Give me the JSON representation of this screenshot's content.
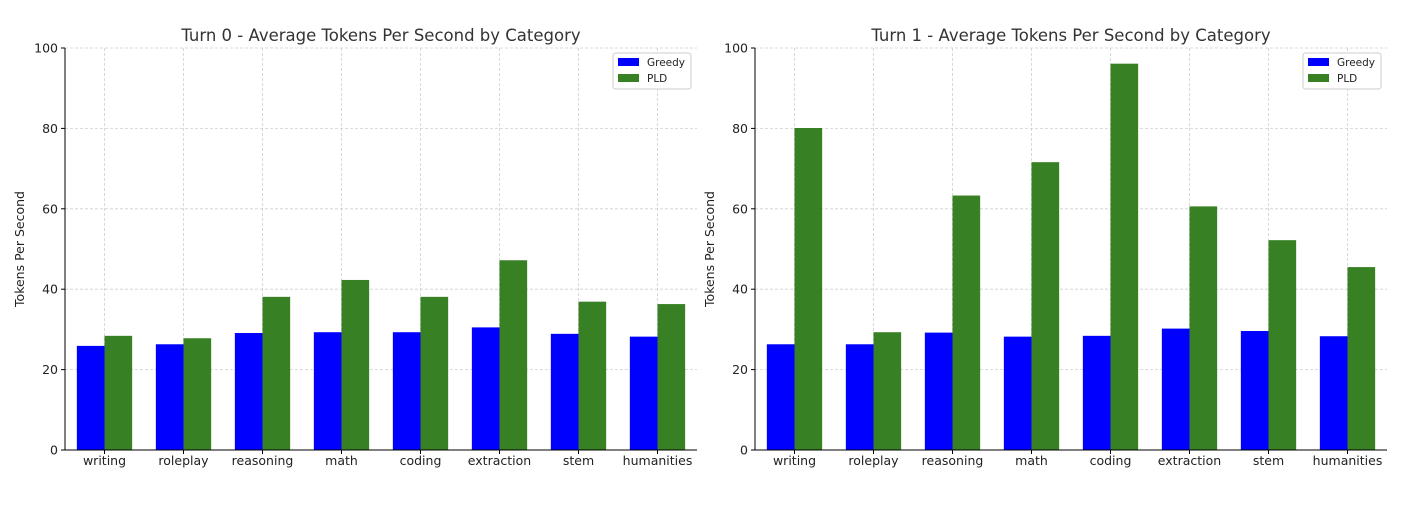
{
  "chart_data": [
    {
      "type": "bar",
      "title": "Turn 0 - Average Tokens Per Second by Category",
      "xlabel": "",
      "ylabel": "Tokens Per Second",
      "ylim": [
        0,
        100
      ],
      "yticks": [
        0,
        20,
        40,
        60,
        80,
        100
      ],
      "grid": true,
      "legend_position": "top-right",
      "categories": [
        "writing",
        "roleplay",
        "reasoning",
        "math",
        "coding",
        "extraction",
        "stem",
        "humanities"
      ],
      "series": [
        {
          "name": "Greedy",
          "color": "#0000ff",
          "values": [
            25.9,
            26.3,
            29.1,
            29.3,
            29.3,
            30.5,
            28.9,
            28.2
          ]
        },
        {
          "name": "PLD",
          "color": "#388024",
          "values": [
            28.4,
            27.8,
            38.1,
            42.3,
            38.1,
            47.2,
            36.9,
            36.3
          ]
        }
      ]
    },
    {
      "type": "bar",
      "title": "Turn 1 - Average Tokens Per Second by Category",
      "xlabel": "",
      "ylabel": "Tokens Per Second",
      "ylim": [
        0,
        100
      ],
      "yticks": [
        0,
        20,
        40,
        60,
        80,
        100
      ],
      "grid": true,
      "legend_position": "top-right",
      "categories": [
        "writing",
        "roleplay",
        "reasoning",
        "math",
        "coding",
        "extraction",
        "stem",
        "humanities"
      ],
      "series": [
        {
          "name": "Greedy",
          "color": "#0000ff",
          "values": [
            26.3,
            26.3,
            29.2,
            28.2,
            28.4,
            30.2,
            29.6,
            28.3
          ]
        },
        {
          "name": "PLD",
          "color": "#388024",
          "values": [
            80.1,
            29.3,
            63.3,
            71.6,
            96.1,
            60.6,
            52.2,
            45.5
          ]
        }
      ]
    }
  ]
}
